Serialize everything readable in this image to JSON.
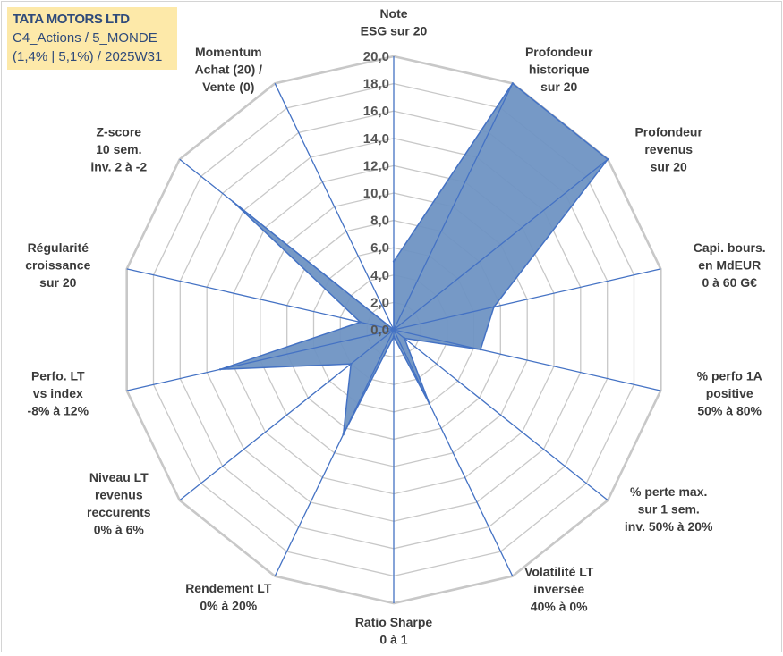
{
  "title_box": {
    "line1": "TATA MOTORS LTD",
    "line2": "C4_Actions / 5_MONDE",
    "line3": "(1,4% | 5,1%) / 2025W31"
  },
  "chart_data": {
    "type": "radar",
    "title": "TATA MOTORS LTD",
    "axes": [
      [
        "Note",
        "ESG sur 20"
      ],
      [
        "Profondeur",
        "historique",
        "sur 20"
      ],
      [
        "Profondeur",
        "revenus",
        "sur 20"
      ],
      [
        "Capi. bours.",
        "en MdEUR",
        "0 à 60 G€"
      ],
      [
        "% perfo 1A",
        "positive",
        "50% à 80%"
      ],
      [
        "% perte max.",
        "sur 1 sem.",
        "inv. 50% à 20%"
      ],
      [
        "Volatilité LT",
        "inversée",
        "40% à 0%"
      ],
      [
        "Ratio Sharpe",
        "0 à 1"
      ],
      [
        "Rendement LT",
        "0% à 20%"
      ],
      [
        "Niveau LT",
        "revenus",
        "reccurents",
        "0% à 6%"
      ],
      [
        "Perfo. LT",
        "vs index",
        "-8% à 12%"
      ],
      [
        "Régularité",
        "croissance",
        "sur 20"
      ],
      [
        "Z-score",
        "10 sem.",
        "inv. 2 à -2"
      ],
      [
        "Momentum",
        "Achat (20) /",
        "Vente (0)"
      ]
    ],
    "series": [
      {
        "values": [
          5.0,
          20.0,
          20.0,
          7.5,
          6.5,
          1.0,
          6.0,
          0.5,
          8.5,
          4.0,
          13.0,
          2.5,
          15.0,
          0.0
        ]
      }
    ],
    "rmin": 0,
    "rmax": 20,
    "ticks": [
      "0,0",
      "2,0",
      "4,0",
      "6,0",
      "8,0",
      "10,0",
      "12,0",
      "14,0",
      "16,0",
      "18,0",
      "20,0"
    ],
    "grid": true,
    "colors": {
      "fill": "#6f93c3",
      "line": "#4472c4",
      "grid": "#c8c8c8",
      "spoke": "#4472c4"
    }
  }
}
